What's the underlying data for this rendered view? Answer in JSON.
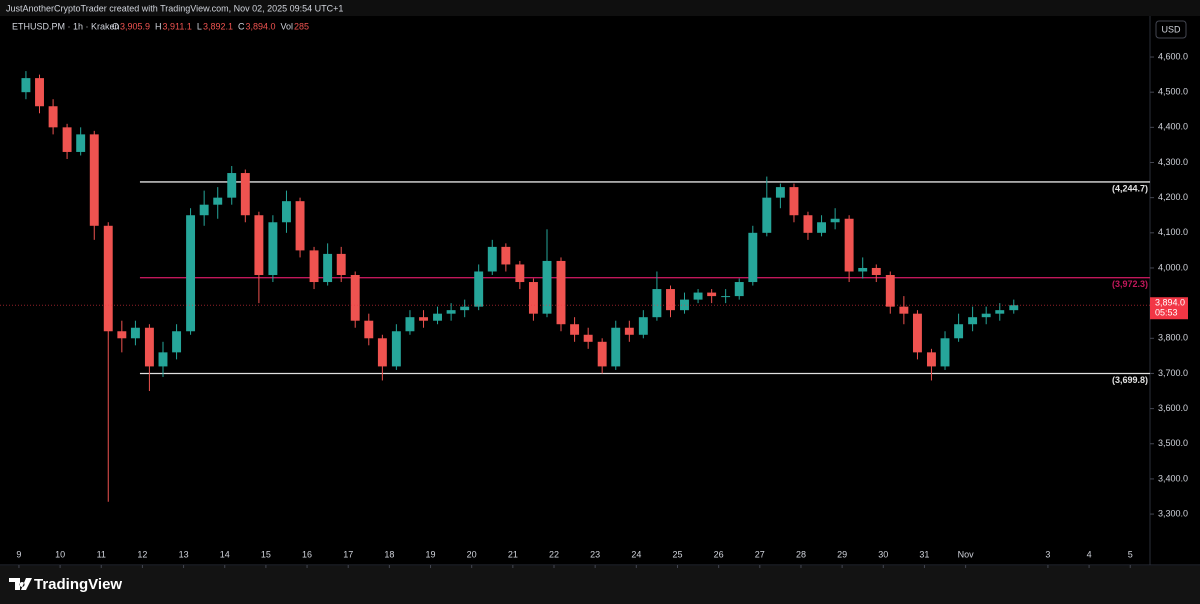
{
  "header": {
    "attribution": "JustAnotherCryptoTrader created with TradingView.com, Nov 02, 2025 09:54 UTC+1",
    "symbol": "ETHUSD.PM · 1h · Kraken",
    "ohlc": [
      {
        "key": "O",
        "value": "3,905.9"
      },
      {
        "key": "H",
        "value": "3,911.1"
      },
      {
        "key": "L",
        "value": "3,892.1"
      },
      {
        "key": "C",
        "value": "3,894.0"
      },
      {
        "key": "Vol",
        "value": "285"
      }
    ],
    "currency": "USD"
  },
  "footer": {
    "brand": "TradingView"
  },
  "chart_data": {
    "type": "candlestick",
    "up_color": "#26a69a",
    "down_color": "#ef5350",
    "x": [
      0.17,
      0.5,
      0.83,
      1.17,
      1.5,
      1.83,
      2.17,
      2.5,
      2.83,
      3.17,
      3.5,
      3.83,
      4.17,
      4.5,
      4.83,
      5.17,
      5.5,
      5.83,
      6.17,
      6.5,
      6.83,
      7.17,
      7.5,
      7.83,
      8.17,
      8.5,
      8.83,
      9.17,
      9.5,
      9.83,
      10.17,
      10.5,
      10.83,
      11.17,
      11.5,
      11.83,
      12.17,
      12.5,
      12.83,
      13.17,
      13.5,
      13.83,
      14.17,
      14.5,
      14.83,
      15.17,
      15.5,
      15.83,
      16.17,
      16.5,
      16.83,
      17.17,
      17.5,
      17.83,
      18.17,
      18.5,
      18.83,
      19.17,
      19.5,
      19.83,
      20.17,
      20.5,
      20.83,
      21.17,
      21.5,
      21.83,
      22.17,
      22.5,
      22.83,
      23.17,
      23.5,
      23.83,
      24.17
    ],
    "open": [
      4500,
      4540,
      4460,
      4400,
      4330,
      4380,
      4120,
      3820,
      3800,
      3830,
      3720,
      3760,
      3820,
      4150,
      4180,
      4200,
      4270,
      4150,
      3980,
      4130,
      4190,
      4050,
      3960,
      4040,
      3980,
      3850,
      3800,
      3720,
      3820,
      3860,
      3850,
      3870,
      3880,
      3890,
      3990,
      4060,
      4010,
      3960,
      3870,
      4020,
      3840,
      3810,
      3790,
      3720,
      3830,
      3810,
      3860,
      3940,
      3880,
      3910,
      3930,
      3920,
      3920,
      3960,
      4100,
      4200,
      4230,
      4150,
      4100,
      4130,
      4140,
      3990,
      4000,
      3980,
      3890,
      3870,
      3760,
      3720,
      3800,
      3840,
      3860,
      3870,
      3880
    ],
    "high": [
      4560,
      4550,
      4480,
      4410,
      4400,
      4390,
      4130,
      3850,
      3850,
      3840,
      3790,
      3840,
      4170,
      4220,
      4230,
      4290,
      4280,
      4160,
      4150,
      4220,
      4200,
      4060,
      4070,
      4060,
      3990,
      3870,
      3810,
      3840,
      3880,
      3880,
      3890,
      3900,
      3910,
      4010,
      4080,
      4070,
      4020,
      3970,
      4110,
      4030,
      3860,
      3830,
      3800,
      3850,
      3850,
      3880,
      3990,
      3950,
      3930,
      3940,
      3940,
      3940,
      3970,
      4120,
      4260,
      4240,
      4240,
      4160,
      4150,
      4170,
      4150,
      4030,
      4010,
      3990,
      3920,
      3880,
      3770,
      3820,
      3870,
      3890,
      3890,
      3900,
      3910
    ],
    "low": [
      4480,
      4440,
      4380,
      4310,
      4320,
      4080,
      3335,
      3760,
      3780,
      3650,
      3690,
      3740,
      3810,
      4120,
      4140,
      4180,
      4130,
      3900,
      3960,
      4100,
      4030,
      3940,
      3950,
      3960,
      3830,
      3780,
      3680,
      3710,
      3810,
      3830,
      3840,
      3850,
      3860,
      3880,
      3980,
      3990,
      3940,
      3850,
      3860,
      3820,
      3790,
      3770,
      3700,
      3710,
      3790,
      3800,
      3850,
      3860,
      3870,
      3900,
      3900,
      3900,
      3910,
      3950,
      4090,
      4170,
      4130,
      4080,
      4090,
      4110,
      3960,
      3970,
      3960,
      3870,
      3840,
      3740,
      3680,
      3710,
      3790,
      3820,
      3840,
      3850,
      3870
    ],
    "close": [
      4540,
      4460,
      4400,
      4330,
      4380,
      4120,
      3820,
      3800,
      3830,
      3720,
      3760,
      3820,
      4150,
      4180,
      4200,
      4270,
      4150,
      3980,
      4130,
      4190,
      4050,
      3960,
      4040,
      3980,
      3850,
      3800,
      3720,
      3820,
      3860,
      3850,
      3870,
      3880,
      3890,
      3990,
      4060,
      4010,
      3960,
      3870,
      4020,
      3840,
      3810,
      3790,
      3720,
      3830,
      3810,
      3860,
      3940,
      3880,
      3910,
      3930,
      3920,
      3920,
      3960,
      4100,
      4200,
      4230,
      4150,
      4100,
      4130,
      4140,
      3990,
      4000,
      3980,
      3890,
      3870,
      3760,
      3720,
      3800,
      3840,
      3860,
      3870,
      3880,
      3894
    ],
    "xlim": [
      -0.46,
      27.48
    ],
    "ylim": [
      3158,
      4711
    ],
    "xticks": [
      {
        "value": 0,
        "label": "9"
      },
      {
        "value": 1,
        "label": "10"
      },
      {
        "value": 2,
        "label": "11"
      },
      {
        "value": 3,
        "label": "12"
      },
      {
        "value": 4,
        "label": "13"
      },
      {
        "value": 5,
        "label": "14"
      },
      {
        "value": 6,
        "label": "15"
      },
      {
        "value": 7,
        "label": "16"
      },
      {
        "value": 8,
        "label": "17"
      },
      {
        "value": 9,
        "label": "18"
      },
      {
        "value": 10,
        "label": "19"
      },
      {
        "value": 11,
        "label": "20"
      },
      {
        "value": 12,
        "label": "21"
      },
      {
        "value": 13,
        "label": "22"
      },
      {
        "value": 14,
        "label": "23"
      },
      {
        "value": 15,
        "label": "24"
      },
      {
        "value": 16,
        "label": "25"
      },
      {
        "value": 17,
        "label": "26"
      },
      {
        "value": 18,
        "label": "27"
      },
      {
        "value": 19,
        "label": "28"
      },
      {
        "value": 20,
        "label": "29"
      },
      {
        "value": 21,
        "label": "30"
      },
      {
        "value": 22,
        "label": "31"
      },
      {
        "value": 23,
        "label": "Nov"
      },
      {
        "value": 25,
        "label": "3"
      },
      {
        "value": 26,
        "label": "4"
      },
      {
        "value": 27,
        "label": "5"
      }
    ],
    "yticks": [
      {
        "value": 3300,
        "label": "3,300.0"
      },
      {
        "value": 3400,
        "label": "3,400.0"
      },
      {
        "value": 3500,
        "label": "3,500.0"
      },
      {
        "value": 3600,
        "label": "3,600.0"
      },
      {
        "value": 3700,
        "label": "3,700.0"
      },
      {
        "value": 3800,
        "label": "3,800.0"
      },
      {
        "value": 3900,
        "label": "3,900.0"
      },
      {
        "value": 4000,
        "label": "4,000.0"
      },
      {
        "value": 4100,
        "label": "4,100.0"
      },
      {
        "value": 4200,
        "label": "4,200.0"
      },
      {
        "value": 4300,
        "label": "4,300.0"
      },
      {
        "value": 4400,
        "label": "4,400.0"
      },
      {
        "value": 4500,
        "label": "4,500.0"
      },
      {
        "value": 4600,
        "label": "4,600.0"
      }
    ],
    "levels": [
      {
        "value": 4244.7,
        "label": "(4,244.7)",
        "color": "#e0e0e0",
        "x_start": 2.94
      },
      {
        "value": 3972.3,
        "label": "(3,972.3)",
        "color": "#c2185b",
        "x_start": 2.94
      },
      {
        "value": 3699.8,
        "label": "(3,699.8)",
        "color": "#e0e0e0",
        "x_start": 2.94
      }
    ],
    "last_price": {
      "value": 3894,
      "label": "3,894.0",
      "countdown": "05:53",
      "color": "#f23645"
    }
  }
}
